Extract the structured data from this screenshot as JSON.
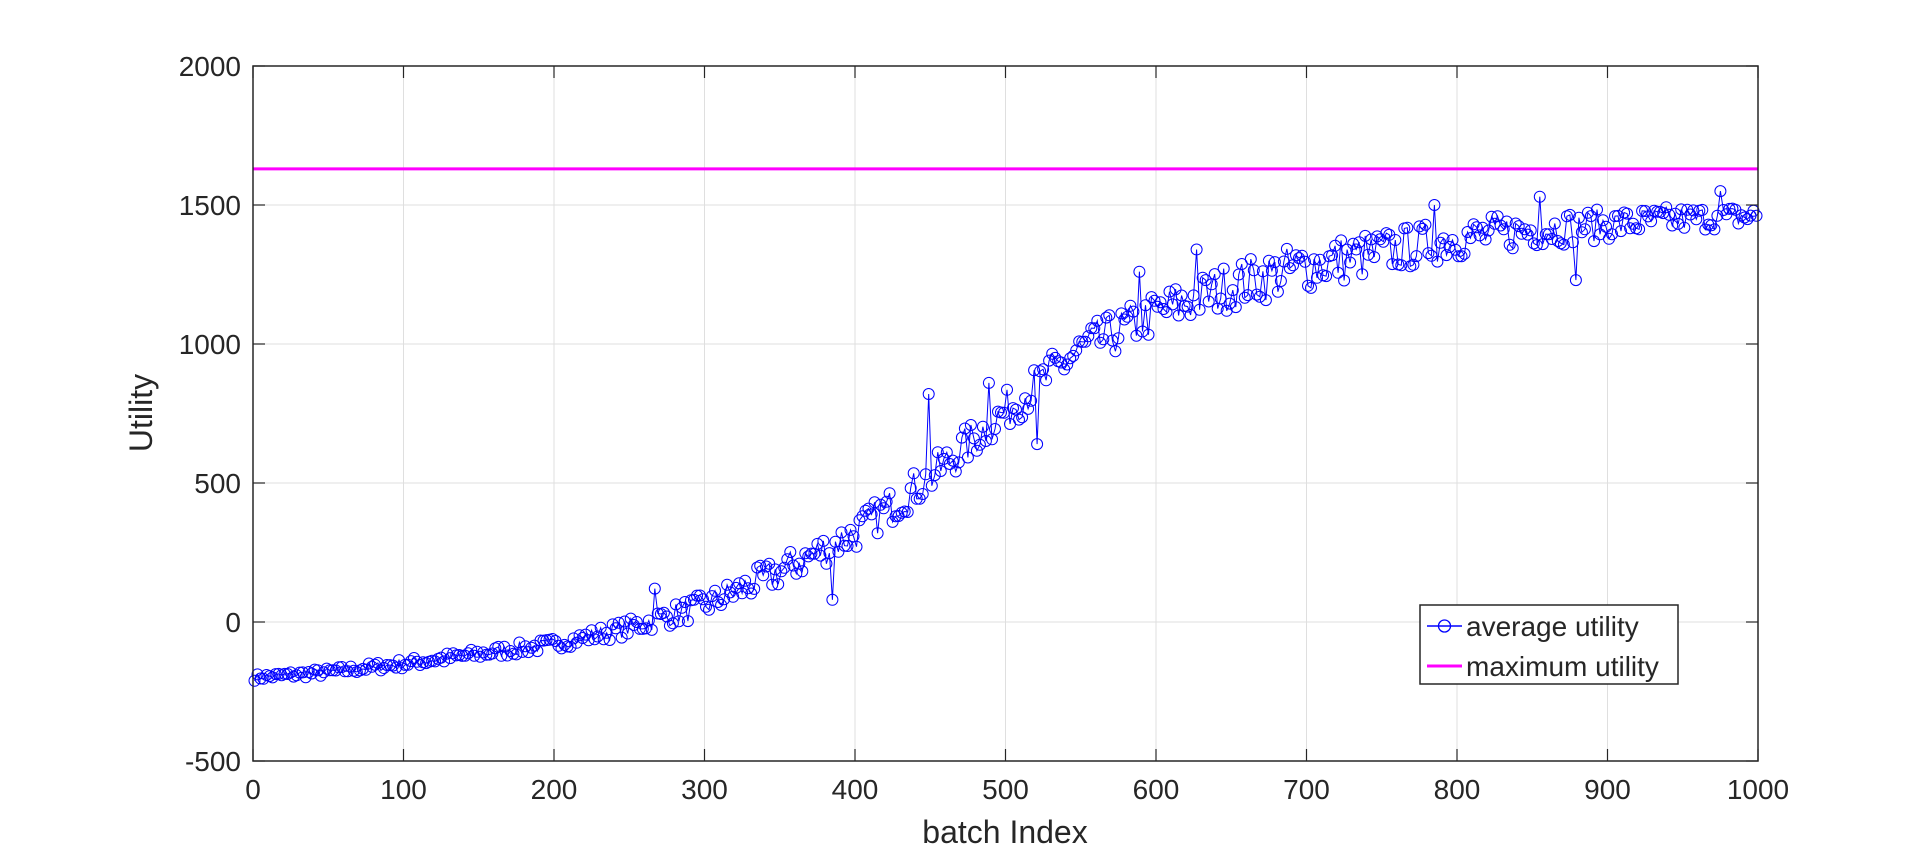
{
  "chart_data": {
    "type": "line",
    "title": "",
    "xlabel": "batch Index",
    "ylabel": "Utility",
    "xlim": [
      0,
      1000
    ],
    "ylim": [
      -500,
      2000
    ],
    "xticks": [
      0,
      100,
      200,
      300,
      400,
      500,
      600,
      700,
      800,
      900,
      1000
    ],
    "yticks": [
      -500,
      0,
      500,
      1000,
      1500,
      2000
    ],
    "xtick_labels": [
      "0",
      "100",
      "200",
      "300",
      "400",
      "500",
      "600",
      "700",
      "800",
      "900",
      "1000"
    ],
    "ytick_labels": [
      "-500",
      "0",
      "500",
      "1000",
      "1500",
      "2000"
    ],
    "grid": true,
    "legend_position": "bottom-right",
    "series": [
      {
        "name": "average utility",
        "style": "line-with-circle-markers",
        "color": "#0000FF",
        "x_range": [
          1,
          1000
        ],
        "x_step": 2,
        "trend_points": [
          [
            0,
            -200
          ],
          [
            50,
            -180
          ],
          [
            100,
            -150
          ],
          [
            150,
            -115
          ],
          [
            200,
            -80
          ],
          [
            250,
            -20
          ],
          [
            300,
            60
          ],
          [
            350,
            180
          ],
          [
            400,
            320
          ],
          [
            450,
            520
          ],
          [
            500,
            760
          ],
          [
            550,
            980
          ],
          [
            600,
            1110
          ],
          [
            650,
            1210
          ],
          [
            700,
            1280
          ],
          [
            750,
            1330
          ],
          [
            800,
            1380
          ],
          [
            850,
            1410
          ],
          [
            900,
            1430
          ],
          [
            950,
            1450
          ],
          [
            1000,
            1460
          ]
        ],
        "notable_points": [
          [
            268,
            120
          ],
          [
            385,
            80
          ],
          [
            450,
            820
          ],
          [
            490,
            860
          ],
          [
            522,
            640
          ],
          [
            590,
            1260
          ],
          [
            627,
            1340
          ],
          [
            786,
            1500
          ],
          [
            855,
            1530
          ],
          [
            880,
            1230
          ],
          [
            975,
            1550
          ]
        ]
      },
      {
        "name": "maximum utility",
        "style": "line",
        "color": "#FF00FF",
        "x": [
          0,
          1000
        ],
        "y": [
          1630,
          1630
        ]
      }
    ]
  }
}
